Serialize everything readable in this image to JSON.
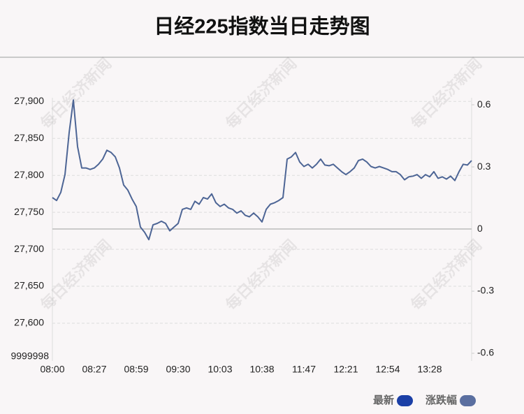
{
  "chart_data": {
    "type": "line",
    "title": "日经225指数当日走势图",
    "watermark": "每日经济新闻",
    "categories": [
      "08:00",
      null,
      null,
      null,
      null,
      null,
      null,
      null,
      null,
      null,
      "08:27",
      null,
      null,
      null,
      null,
      null,
      null,
      null,
      null,
      null,
      "08:59",
      null,
      null,
      null,
      null,
      null,
      null,
      null,
      null,
      null,
      "09:30",
      null,
      null,
      null,
      null,
      null,
      null,
      null,
      null,
      null,
      "10:03",
      null,
      null,
      null,
      null,
      null,
      null,
      null,
      null,
      null,
      "10:38",
      null,
      null,
      null,
      null,
      null,
      null,
      null,
      null,
      null,
      "11:47",
      null,
      null,
      null,
      null,
      null,
      null,
      null,
      null,
      null,
      "12:21",
      null,
      null,
      null,
      null,
      null,
      null,
      null,
      null,
      null,
      "12:54",
      null,
      null,
      null,
      null,
      null,
      null,
      null,
      null,
      null,
      "13:28",
      null,
      null,
      null,
      null,
      null,
      null,
      null,
      null,
      null,
      null
    ],
    "values": [
      27770,
      27766,
      27777,
      27801,
      27858,
      27902,
      27839,
      27810,
      27810,
      27808,
      27810,
      27815,
      27822,
      27834,
      27831,
      27825,
      27810,
      27787,
      27780,
      27768,
      27758,
      27730,
      27723,
      27713,
      27733,
      27735,
      27738,
      27735,
      27725,
      27730,
      27735,
      27754,
      27756,
      27754,
      27765,
      27761,
      27770,
      27768,
      27775,
      27763,
      27758,
      27761,
      27756,
      27754,
      27749,
      27752,
      27746,
      27744,
      27749,
      27744,
      27737,
      27754,
      27761,
      27763,
      27766,
      27770,
      27822,
      27825,
      27831,
      27818,
      27812,
      27815,
      27810,
      27815,
      27822,
      27814,
      27813,
      27815,
      27810,
      27805,
      27801,
      27805,
      27810,
      27820,
      27822,
      27818,
      27812,
      27810,
      27812,
      27810,
      27808,
      27805,
      27805,
      27801,
      27794,
      27798,
      27799,
      27801,
      27796,
      27801,
      27798,
      27805,
      27796,
      27798,
      27795,
      27799,
      27793,
      27805,
      27815,
      27814,
      27820
    ],
    "color": "#4d6595",
    "ylim": [
      27549,
      27905
    ],
    "yticks": [
      {
        "value": 27900,
        "label": "27,900"
      },
      {
        "value": 27850,
        "label": "27,850"
      },
      {
        "value": 27800,
        "label": "27,800"
      },
      {
        "value": 27750,
        "label": "27,750"
      },
      {
        "value": 27700,
        "label": "27,700"
      },
      {
        "value": 27650,
        "label": "27,650"
      },
      {
        "value": 27600,
        "label": "27,600"
      }
    ],
    "y_bottom_label": "9999998",
    "y2lim": [
      -0.637,
      0.634
    ],
    "y2ticks": [
      0.6,
      0.3,
      0,
      -0.3,
      -0.6
    ],
    "grid": true,
    "legend": [
      {
        "name": "最新",
        "color": "#1b3fa6"
      },
      {
        "name": "涨跌幅",
        "color": "#5b6fa0"
      }
    ]
  }
}
